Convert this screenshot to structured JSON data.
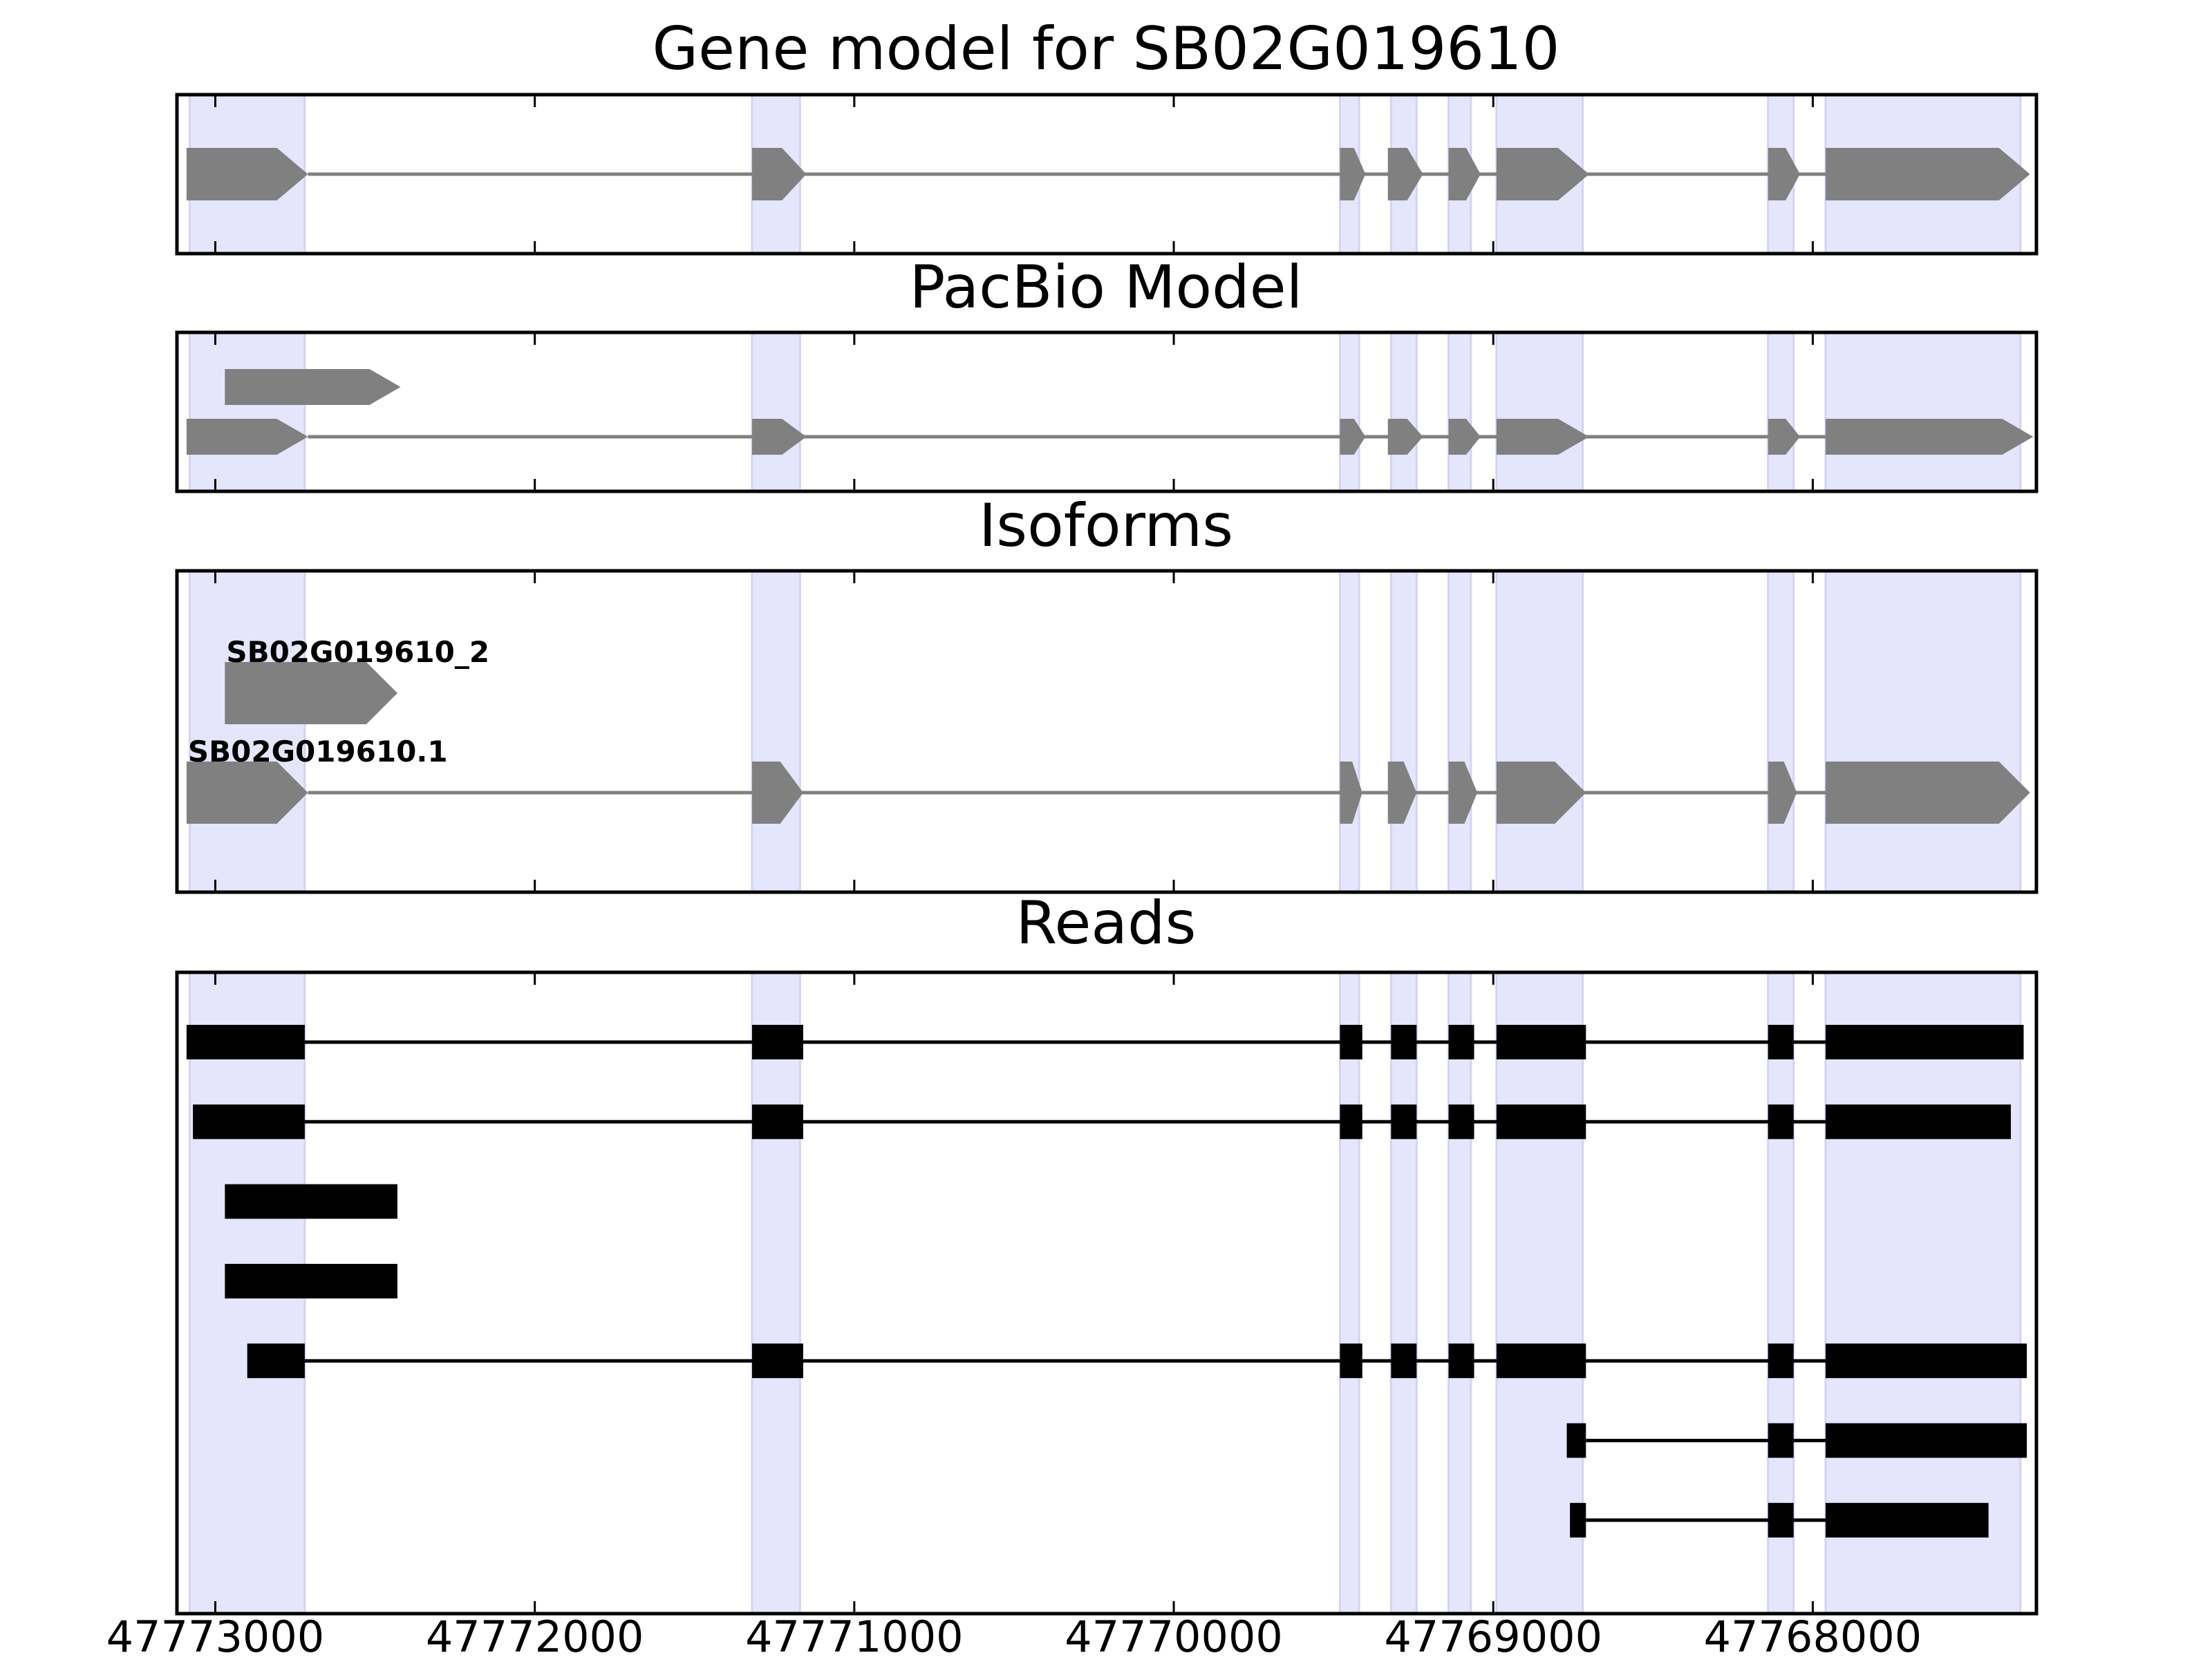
{
  "figure": {
    "panels": [
      {
        "id": "gene",
        "title": "Gene model for SB02G019610"
      },
      {
        "id": "pacbio",
        "title": "PacBio Model"
      },
      {
        "id": "isoforms",
        "title": "Isoforms"
      },
      {
        "id": "reads",
        "title": "Reads"
      }
    ],
    "colors": {
      "shade": "#e5e5fc",
      "shade_edge": "#d3d3f3",
      "model": "#808080",
      "read": "#000000"
    }
  },
  "chart_data": {
    "type": "gene_structure",
    "x_axis": {
      "reversed": true,
      "xlim": [
        47773120,
        47767300
      ],
      "ticks": [
        47773000,
        47772000,
        47771000,
        47770000,
        47769000,
        47768000
      ],
      "tick_labels": [
        "47773000",
        "47772000",
        "47771000",
        "47770000",
        "47769000",
        "47768000"
      ]
    },
    "exon_regions": [
      [
        47773080,
        47772720
      ],
      [
        47771320,
        47771170
      ],
      [
        47769480,
        47769420
      ],
      [
        47769320,
        47769240
      ],
      [
        47769140,
        47769070
      ],
      [
        47768990,
        47768720
      ],
      [
        47768140,
        47768060
      ],
      [
        47767960,
        47767350
      ]
    ],
    "gene_model": {
      "exons": [
        [
          47773090,
          47772710
        ],
        [
          47771320,
          47771150
        ],
        [
          47769480,
          47769400
        ],
        [
          47769330,
          47769220
        ],
        [
          47769140,
          47769040
        ],
        [
          47768990,
          47768700
        ],
        [
          47768140,
          47768040
        ],
        [
          47767960,
          47767320
        ]
      ]
    },
    "pacbio_models": [
      {
        "exons": [
          [
            47772970,
            47772420
          ]
        ]
      },
      {
        "exons": [
          [
            47773090,
            47772710
          ],
          [
            47771320,
            47771150
          ],
          [
            47769480,
            47769400
          ],
          [
            47769330,
            47769220
          ],
          [
            47769140,
            47769040
          ],
          [
            47768990,
            47768700
          ],
          [
            47768140,
            47768040
          ],
          [
            47767960,
            47767310
          ]
        ]
      }
    ],
    "isoforms": [
      {
        "name": "SB02G019610_2",
        "exons": [
          [
            47772970,
            47772430
          ]
        ]
      },
      {
        "name": "SB02G019610.1",
        "exons": [
          [
            47773090,
            47772710
          ],
          [
            47771320,
            47771160
          ],
          [
            47769480,
            47769410
          ],
          [
            47769330,
            47769240
          ],
          [
            47769140,
            47769050
          ],
          [
            47768990,
            47768710
          ],
          [
            47768140,
            47768050
          ],
          [
            47767960,
            47767320
          ]
        ]
      }
    ],
    "reads": [
      {
        "exons": [
          [
            47773090,
            47772720
          ],
          [
            47771320,
            47771160
          ],
          [
            47769480,
            47769410
          ],
          [
            47769320,
            47769240
          ],
          [
            47769140,
            47769060
          ],
          [
            47768990,
            47768710
          ],
          [
            47768140,
            47768060
          ],
          [
            47767960,
            47767340
          ]
        ]
      },
      {
        "exons": [
          [
            47773070,
            47772720
          ],
          [
            47771320,
            47771160
          ],
          [
            47769480,
            47769410
          ],
          [
            47769320,
            47769240
          ],
          [
            47769140,
            47769060
          ],
          [
            47768990,
            47768710
          ],
          [
            47768140,
            47768060
          ],
          [
            47767960,
            47767380
          ]
        ]
      },
      {
        "exons": [
          [
            47772970,
            47772430
          ]
        ]
      },
      {
        "exons": [
          [
            47772970,
            47772430
          ]
        ]
      },
      {
        "exons": [
          [
            47772900,
            47772720
          ],
          [
            47771320,
            47771160
          ],
          [
            47769480,
            47769410
          ],
          [
            47769320,
            47769240
          ],
          [
            47769140,
            47769060
          ],
          [
            47768990,
            47768710
          ],
          [
            47768140,
            47768060
          ],
          [
            47767960,
            47767330
          ]
        ]
      },
      {
        "exons": [
          [
            47768770,
            47768710
          ],
          [
            47768140,
            47768060
          ],
          [
            47767960,
            47767330
          ]
        ]
      },
      {
        "exons": [
          [
            47768760,
            47768710
          ],
          [
            47768140,
            47768060
          ],
          [
            47767960,
            47767450
          ]
        ]
      }
    ]
  }
}
